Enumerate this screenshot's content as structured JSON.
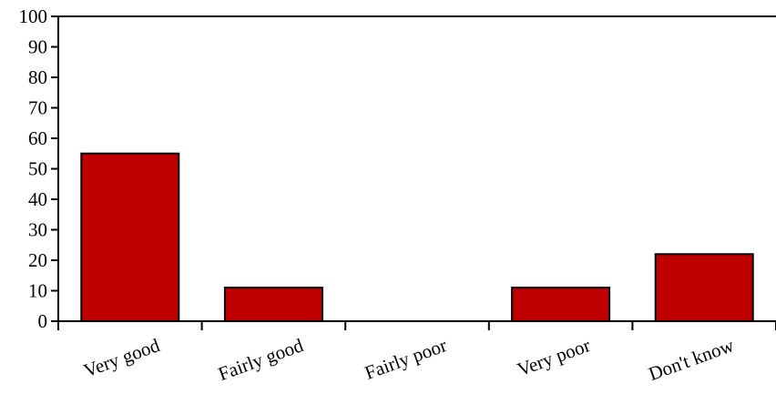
{
  "chart_data": {
    "type": "bar",
    "categories": [
      "Very good",
      "Fairly good",
      "Fairly poor",
      "Very poor",
      "Don't know"
    ],
    "values": [
      55,
      11,
      0,
      11,
      22
    ],
    "ylim": [
      0,
      100
    ],
    "yticks": [
      "0",
      "10",
      "20",
      "30",
      "40",
      "50",
      "60",
      "70",
      "80",
      "90",
      "100"
    ],
    "title": "",
    "xlabel": "",
    "ylabel": "",
    "bar_color": "#c00000",
    "grid": false,
    "legend": "none"
  }
}
